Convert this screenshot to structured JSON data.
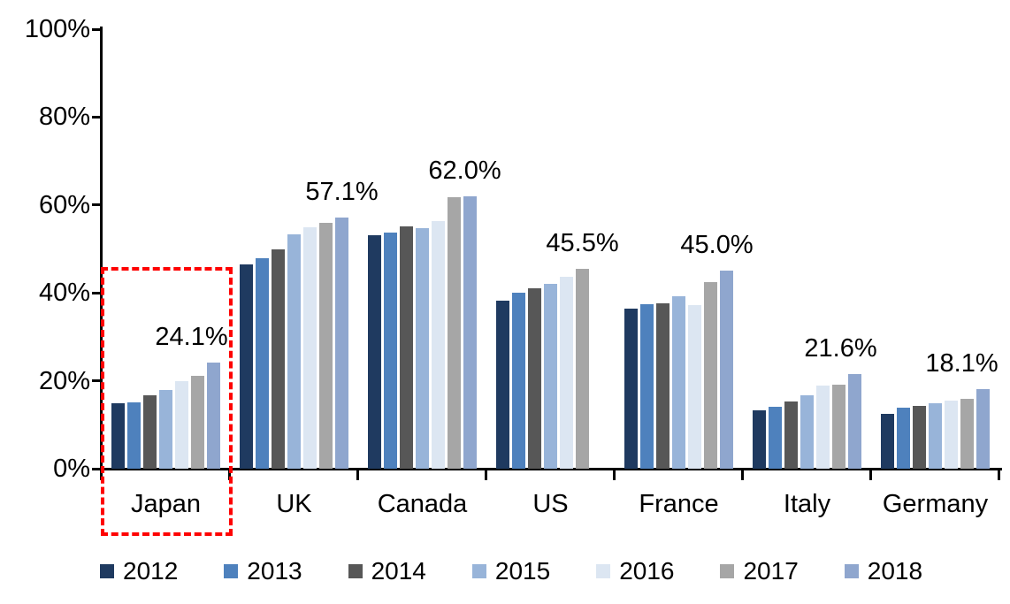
{
  "chart_data": {
    "type": "bar",
    "title": "",
    "xlabel": "",
    "ylabel": "",
    "ylim": [
      0,
      100
    ],
    "yticks": [
      "0%",
      "20%",
      "40%",
      "60%",
      "80%",
      "100%"
    ],
    "grid": false,
    "legend_position": "bottom",
    "axis_color": "#000000",
    "text_color": "#000000",
    "categories": [
      "Japan",
      "UK",
      "Canada",
      "US",
      "France",
      "Italy",
      "Germany"
    ],
    "series": [
      {
        "name": "2012",
        "color": "#1F3A60",
        "values": [
          14.9,
          46.4,
          53.1,
          38.2,
          36.5,
          13.2,
          12.5
        ]
      },
      {
        "name": "2013",
        "color": "#4E81BD",
        "values": [
          15.1,
          47.9,
          53.7,
          40.1,
          37.5,
          14.1,
          13.9
        ]
      },
      {
        "name": "2014",
        "color": "#575757",
        "values": [
          16.7,
          50.0,
          55.1,
          41.0,
          37.7,
          15.2,
          14.3
        ]
      },
      {
        "name": "2015",
        "color": "#98B4D9",
        "values": [
          17.9,
          53.3,
          54.8,
          42.1,
          39.3,
          16.8,
          14.8
        ]
      },
      {
        "name": "2016",
        "color": "#DCE6F2",
        "values": [
          19.9,
          54.9,
          56.3,
          43.6,
          37.3,
          18.9,
          15.4
        ]
      },
      {
        "name": "2017",
        "color": "#A6A6A6",
        "values": [
          21.2,
          56.0,
          61.7,
          45.5,
          42.4,
          19.2,
          15.9
        ]
      },
      {
        "name": "2018",
        "color": "#8FA6CE",
        "values": [
          24.1,
          57.1,
          62.0,
          null,
          45.0,
          21.6,
          18.1
        ]
      }
    ],
    "data_labels": [
      "24.1%",
      "57.1%",
      "62.0%",
      "45.5%",
      "45.0%",
      "21.6%",
      "18.1%"
    ],
    "highlight": {
      "category": "Japan",
      "style": "red-dashed-box",
      "color": "#FE0202"
    }
  }
}
